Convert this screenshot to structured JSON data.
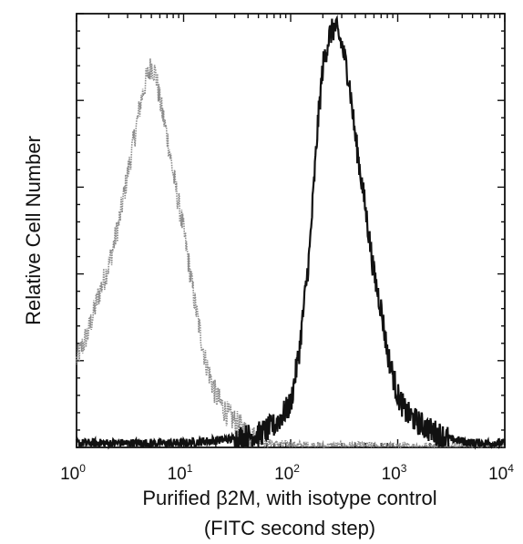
{
  "chart_data": {
    "type": "line",
    "title": "",
    "ylabel": "Relative Cell Number",
    "xlabel_lines": [
      "Purified β2M, with isotype control",
      "(FITC second step)"
    ],
    "x_scale": "log10",
    "xlim": [
      1,
      10000
    ],
    "ylim": [
      0,
      100
    ],
    "x_tick_labels": [
      {
        "base": "10",
        "exp": "0"
      },
      {
        "base": "10",
        "exp": "1"
      },
      {
        "base": "10",
        "exp": "2"
      },
      {
        "base": "10",
        "exp": "3"
      },
      {
        "base": "10",
        "exp": "4"
      }
    ],
    "y_ticks_labeled": false,
    "grid": false,
    "series": [
      {
        "color": "#8a8a8a",
        "x": [
          1,
          1.3,
          1.6,
          2,
          2.5,
          3,
          3.5,
          4,
          4.5,
          5,
          5.5,
          6,
          7,
          8,
          10,
          13,
          16,
          20,
          25,
          30,
          40,
          50,
          70,
          100,
          200,
          500,
          1000,
          10000
        ],
        "y": [
          20,
          27,
          35,
          42,
          52,
          63,
          72,
          80,
          85,
          88,
          86,
          80,
          72,
          63,
          50,
          32,
          20,
          12,
          8,
          6,
          3,
          1.5,
          0.8,
          0.5,
          0.3,
          0.3,
          0.2,
          0.1
        ]
      },
      {
        "color": "#111111",
        "x": [
          1,
          10,
          30,
          50,
          70,
          100,
          120,
          150,
          180,
          200,
          230,
          260,
          300,
          350,
          400,
          500,
          600,
          700,
          800,
          1000,
          1200,
          1500,
          2000,
          3000,
          5000,
          10000
        ],
        "y": [
          1,
          1,
          2,
          3,
          5,
          10,
          22,
          45,
          75,
          88,
          95,
          97,
          93,
          85,
          72,
          55,
          40,
          32,
          22,
          12,
          8,
          6,
          4,
          2,
          1,
          1
        ]
      }
    ]
  }
}
